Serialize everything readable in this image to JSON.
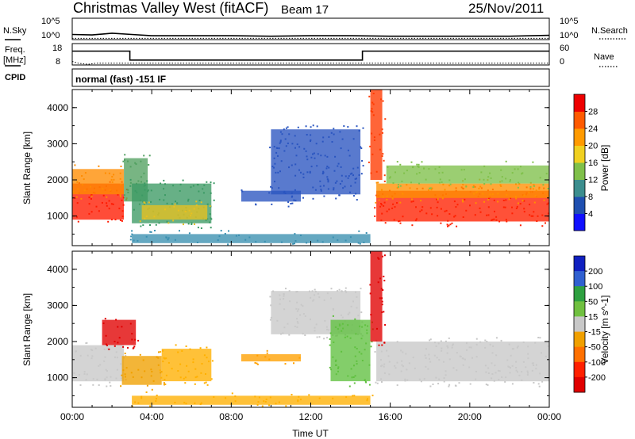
{
  "header": {
    "station": "Christmas Valley West (fitACF)",
    "beam": "Beam 17",
    "date": "25/Nov/2011"
  },
  "chart_data": [
    {
      "type": "line",
      "name": "noise-panel",
      "left_label": "N.Sky",
      "right_label": "N.Search",
      "left_ticks": [
        "10^5",
        "10^0"
      ],
      "right_ticks": [
        "10^5",
        "10^0"
      ],
      "x_hours": [
        0,
        24
      ],
      "y_range_log10": [
        0,
        5
      ],
      "sky_log10": [
        [
          0,
          1.2
        ],
        [
          1,
          1.1
        ],
        [
          2,
          1.5
        ],
        [
          3,
          1.2
        ],
        [
          4,
          0.9
        ],
        [
          6,
          0.9
        ],
        [
          8,
          0.9
        ],
        [
          10,
          0.8
        ],
        [
          12,
          0.9
        ],
        [
          14,
          0.9
        ],
        [
          16,
          0.8
        ],
        [
          18,
          0.8
        ],
        [
          20,
          0.8
        ],
        [
          22,
          0.8
        ],
        [
          24,
          1.0
        ]
      ],
      "search_log10": 0.3
    },
    {
      "type": "line",
      "name": "frequency-panel",
      "left_label": "Freq.",
      "left_units": "[MHz]",
      "right_label": "Nave",
      "left_ticks": [
        "18",
        "8"
      ],
      "right_ticks": [
        "60",
        "0"
      ],
      "x_hours": [
        0,
        24
      ],
      "freq_range_mhz": [
        8,
        18
      ],
      "nave_range": [
        0,
        60
      ],
      "freq_mhz": [
        [
          0,
          14.5
        ],
        [
          2.9,
          14.5
        ],
        [
          2.9,
          10.3
        ],
        [
          14.6,
          10.3
        ],
        [
          14.6,
          14.5
        ],
        [
          24,
          14.5
        ]
      ],
      "nave": [
        [
          0,
          10
        ],
        [
          0.3,
          5
        ],
        [
          0.8,
          2
        ],
        [
          1.2,
          5
        ],
        [
          2,
          5
        ],
        [
          24,
          5
        ]
      ]
    },
    {
      "type": "table",
      "name": "cpid-panel",
      "label": "CPID",
      "text": "normal (fast) -151 IF"
    },
    {
      "type": "heatmap",
      "name": "power-panel",
      "ylabel": "Slant Range [km]",
      "x_hours": [
        0,
        24
      ],
      "ylim_km": [
        180,
        4500
      ],
      "y_ticks": [
        "1000",
        "2000",
        "3000",
        "4000"
      ],
      "colorbar_label": "Power [dB]",
      "colorbar_ticks": [
        "4",
        "8",
        "12",
        "16",
        "20",
        "24",
        "28"
      ],
      "colorbar_colors": [
        "#1010ff",
        "#1f4fb0",
        "#3c8e8e",
        "#7fc04a",
        "#f0d020",
        "#ff9a00",
        "#ff5a00",
        "#ee0000"
      ],
      "echo_regions": [
        {
          "hours": [
            0,
            2.6
          ],
          "km": [
            900,
            1900
          ],
          "color": "#ff1a00"
        },
        {
          "hours": [
            0,
            2.6
          ],
          "km": [
            1600,
            2300
          ],
          "color": "#ff8c00"
        },
        {
          "hours": [
            2.6,
            3.8
          ],
          "km": [
            1400,
            2600
          ],
          "color": "#52a060"
        },
        {
          "hours": [
            3.0,
            7.0
          ],
          "km": [
            800,
            1900
          ],
          "color": "#3c9a64"
        },
        {
          "hours": [
            3.5,
            6.8
          ],
          "km": [
            900,
            1300
          ],
          "color": "#e8c020"
        },
        {
          "hours": [
            8.5,
            11.5
          ],
          "km": [
            1400,
            1700
          ],
          "color": "#2a55c0"
        },
        {
          "hours": [
            10.0,
            14.5
          ],
          "km": [
            1600,
            3400
          ],
          "color": "#2a55c0"
        },
        {
          "hours": [
            3.0,
            15.0
          ],
          "km": [
            250,
            500
          ],
          "color": "#3a8fb0"
        },
        {
          "hours": [
            15.3,
            24
          ],
          "km": [
            850,
            1700
          ],
          "color": "#ff2000"
        },
        {
          "hours": [
            15.3,
            24
          ],
          "km": [
            1500,
            1900
          ],
          "color": "#ff9000"
        },
        {
          "hours": [
            15.8,
            24
          ],
          "km": [
            1900,
            2400
          ],
          "color": "#7fc04a"
        },
        {
          "hours": [
            15.0,
            15.6
          ],
          "km": [
            2000,
            4500
          ],
          "color": "#ff3a00"
        }
      ]
    },
    {
      "type": "heatmap",
      "name": "velocity-panel",
      "ylabel": "Slant Range [km]",
      "xlabel": "Time UT",
      "x_hours": [
        0,
        24
      ],
      "ylim_km": [
        180,
        4500
      ],
      "x_ticks": [
        "00:00",
        "04:00",
        "08:00",
        "12:00",
        "16:00",
        "20:00",
        "00:00"
      ],
      "y_ticks": [
        "1000",
        "2000",
        "3000",
        "4000"
      ],
      "colorbar_label": "Velocity [m s^-1]",
      "colorbar_ticks": [
        "200",
        "100",
        "50",
        "15",
        "-15",
        "-50",
        "-100",
        "-200"
      ],
      "colorbar_colors": [
        "#1020c0",
        "#3060d0",
        "#2ea040",
        "#70c040",
        "#c8c8c8",
        "#f0a000",
        "#ff7000",
        "#ff2000",
        "#e00000"
      ],
      "echo_regions": [
        {
          "hours": [
            0,
            2.6
          ],
          "km": [
            900,
            1900
          ],
          "color": "#c8c8c8"
        },
        {
          "hours": [
            1.5,
            3.2
          ],
          "km": [
            1900,
            2600
          ],
          "color": "#e00000"
        },
        {
          "hours": [
            2.5,
            4.5
          ],
          "km": [
            800,
            1600
          ],
          "color": "#f0a000"
        },
        {
          "hours": [
            4.5,
            7.0
          ],
          "km": [
            900,
            1800
          ],
          "color": "#ffb000"
        },
        {
          "hours": [
            8.5,
            11.5
          ],
          "km": [
            1450,
            1650
          ],
          "color": "#ffa000"
        },
        {
          "hours": [
            10.0,
            14.5
          ],
          "km": [
            2200,
            3400
          ],
          "color": "#c8c8c8"
        },
        {
          "hours": [
            13.0,
            15.0
          ],
          "km": [
            900,
            2600
          ],
          "color": "#60c040"
        },
        {
          "hours": [
            3.0,
            15.0
          ],
          "km": [
            250,
            500
          ],
          "color": "#ffb000"
        },
        {
          "hours": [
            15.3,
            24
          ],
          "km": [
            900,
            2000
          ],
          "color": "#c8c8c8"
        },
        {
          "hours": [
            15.0,
            15.6
          ],
          "km": [
            2000,
            4500
          ],
          "color": "#e00000"
        }
      ]
    }
  ]
}
